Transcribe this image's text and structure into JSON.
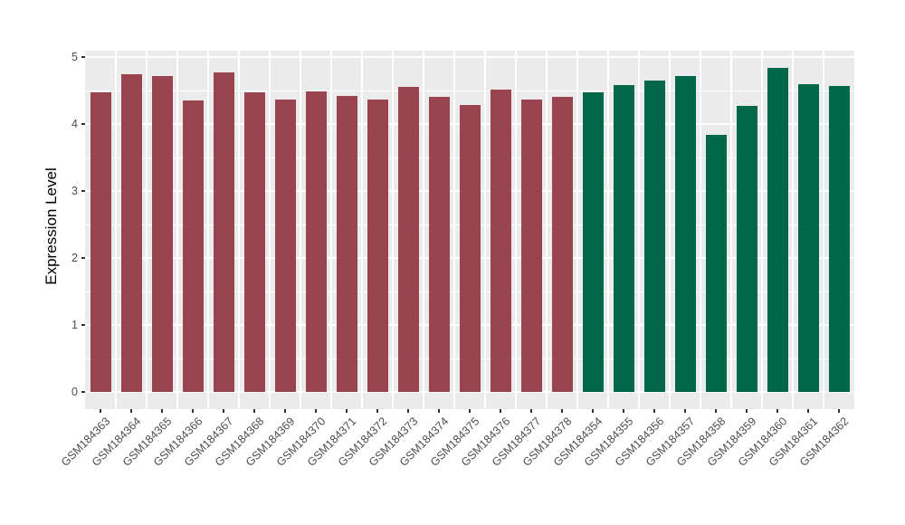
{
  "chart_data": {
    "type": "bar",
    "title": "",
    "xlabel": "",
    "ylabel": "Expression Level",
    "ylim": [
      0,
      5
    ],
    "yticks": [
      0,
      1,
      2,
      3,
      4,
      5
    ],
    "y_minor_ticks": [
      0.5,
      1.5,
      2.5,
      3.5,
      4.5
    ],
    "grid": "on",
    "legend_position": "none",
    "panel_bg": "#EBEBEB",
    "grid_color": "#FFFFFF",
    "axis_text_color": "#4D4D4D",
    "axis_title_color": "#000000",
    "tick_mark_color": "#333333",
    "group_colors": {
      "left_group": "#9A4450",
      "right_group": "#026648"
    },
    "bars": [
      {
        "label": "GSM184363",
        "value": 4.47,
        "group": "left_group"
      },
      {
        "label": "GSM184364",
        "value": 4.74,
        "group": "left_group"
      },
      {
        "label": "GSM184365",
        "value": 4.71,
        "group": "left_group"
      },
      {
        "label": "GSM184366",
        "value": 4.35,
        "group": "left_group"
      },
      {
        "label": "GSM184367",
        "value": 4.77,
        "group": "left_group"
      },
      {
        "label": "GSM184368",
        "value": 4.47,
        "group": "left_group"
      },
      {
        "label": "GSM184369",
        "value": 4.36,
        "group": "left_group"
      },
      {
        "label": "GSM184370",
        "value": 4.49,
        "group": "left_group"
      },
      {
        "label": "GSM184371",
        "value": 4.42,
        "group": "left_group"
      },
      {
        "label": "GSM184372",
        "value": 4.37,
        "group": "left_group"
      },
      {
        "label": "GSM184373",
        "value": 4.55,
        "group": "left_group"
      },
      {
        "label": "GSM184374",
        "value": 4.4,
        "group": "left_group"
      },
      {
        "label": "GSM184375",
        "value": 4.29,
        "group": "left_group"
      },
      {
        "label": "GSM184376",
        "value": 4.51,
        "group": "left_group"
      },
      {
        "label": "GSM184377",
        "value": 4.36,
        "group": "left_group"
      },
      {
        "label": "GSM184378",
        "value": 4.4,
        "group": "left_group"
      },
      {
        "label": "GSM184354",
        "value": 4.47,
        "group": "right_group"
      },
      {
        "label": "GSM184355",
        "value": 4.58,
        "group": "right_group"
      },
      {
        "label": "GSM184356",
        "value": 4.65,
        "group": "right_group"
      },
      {
        "label": "GSM184357",
        "value": 4.71,
        "group": "right_group"
      },
      {
        "label": "GSM184358",
        "value": 3.84,
        "group": "right_group"
      },
      {
        "label": "GSM184359",
        "value": 4.27,
        "group": "right_group"
      },
      {
        "label": "GSM184360",
        "value": 4.84,
        "group": "right_group"
      },
      {
        "label": "GSM184361",
        "value": 4.6,
        "group": "right_group"
      },
      {
        "label": "GSM184362",
        "value": 4.57,
        "group": "right_group"
      }
    ]
  }
}
